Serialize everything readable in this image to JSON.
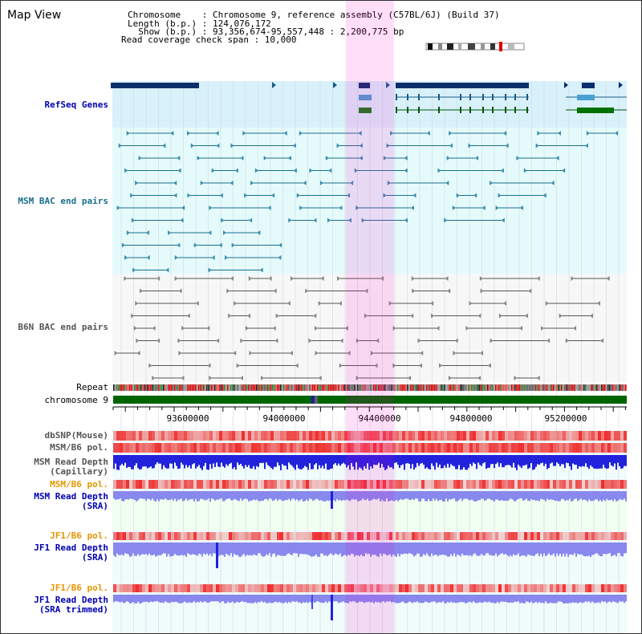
{
  "header": {
    "title": "Map View",
    "info_lines": [
      "Chromosome    : Chromosome 9, reference assembly (C57BL/6J) (Build 37)",
      "Length (b.p.) : 124,076,172",
      "  Show (b.p.) : 93,356,674-95,557,448 : 2,200,775 bp",
      "Read coverage check span : 10,000"
    ]
  },
  "tracks": {
    "refseq": "RefSeq Genes",
    "msm_bac": "MSM BAC end pairs",
    "b6n_bac": "B6N BAC end pairs",
    "repeat": "Repeat",
    "chromosome": "chromosome 9",
    "dbsnp": "dbSNP(Mouse)",
    "msm_b6_pol": "MSM/B6 pol.",
    "msm_depth_cap_1": "MSM Read Depth",
    "msm_depth_cap_2": "(Capillary)",
    "msm_b6_pol_2": "MSM/B6 pol.",
    "msm_depth_sra_1": "MSM Read Depth",
    "msm_depth_sra_2": "(SRA)",
    "jf1_b6_pol": "JF1/B6 pol.",
    "jf1_depth_sra_1": "JF1 Read Depth",
    "jf1_depth_sra_2": "(SRA)",
    "jf1_b6_pol_2": "JF1/B6 pol.",
    "jf1_depth_trim_1": "JF1 Read Depth",
    "jf1_depth_trim_2": "(SRA trimmed)"
  },
  "axis": {
    "ticks": [
      "93600000",
      "94000000",
      "94400000",
      "94800000",
      "95200000"
    ]
  },
  "colors": {
    "refseq_bg": "#d9f1fb",
    "bac_bg": "#e5fbfb",
    "highlight": "#ffccf2",
    "chromosome": "#006400",
    "depth_dark": "#2222dd",
    "depth_light": "#8888ee"
  }
}
